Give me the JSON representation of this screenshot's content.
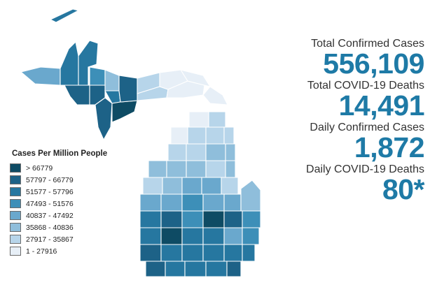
{
  "legend": {
    "title": "Cases Per Million People",
    "items": [
      {
        "label": "> 66779",
        "color": "#0e4b64"
      },
      {
        "label": "57797 - 66779",
        "color": "#1d6287"
      },
      {
        "label": "51577 - 57796",
        "color": "#2677a0"
      },
      {
        "label": "47493 - 51576",
        "color": "#3d8fb8"
      },
      {
        "label": "40837 - 47492",
        "color": "#6aa8cd"
      },
      {
        "label": "35868 - 40836",
        "color": "#8fbedb"
      },
      {
        "label": "27917 - 35867",
        "color": "#b7d5ea"
      },
      {
        "label": "1 - 27916",
        "color": "#e7eff7"
      }
    ]
  },
  "stats": [
    {
      "label": "Total Confirmed Cases",
      "value": "556,109"
    },
    {
      "label": "Total COVID-19 Deaths",
      "value": "14,491"
    },
    {
      "label": "Daily Confirmed Cases",
      "value": "1,872"
    },
    {
      "label": "Daily COVID-19 Deaths",
      "value": "80*"
    }
  ]
}
